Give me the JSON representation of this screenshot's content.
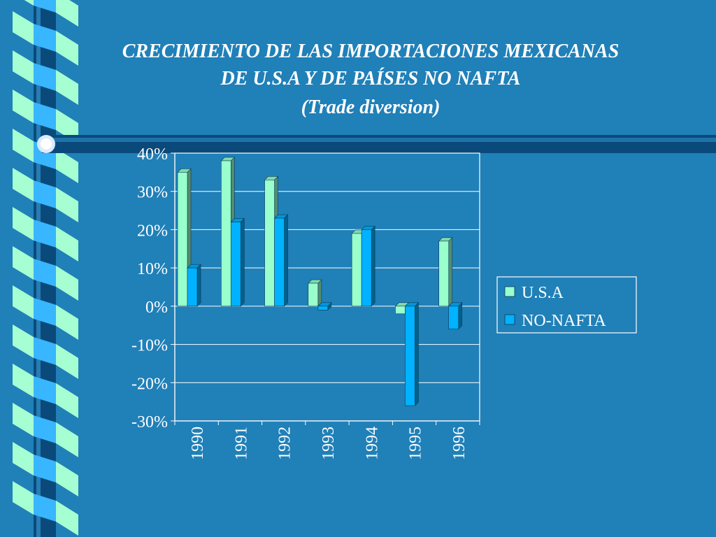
{
  "slide": {
    "title_lines": [
      "CRECIMIENTO DE LAS IMPORTACIONES MEXICANAS",
      "DE U.S.A Y DE PAÍSES NO NAFTA",
      "(Trade diversion)"
    ]
  },
  "chart_data": {
    "type": "bar",
    "title": "CRECIMIENTO DE LAS IMPORTACIONES MEXICANAS DE U.S.A Y DE PAÍSES NO NAFTA (Trade diversion)",
    "categories": [
      "1990",
      "1991",
      "1992",
      "1993",
      "1994",
      "1995",
      "1996"
    ],
    "series": [
      {
        "name": "U.S.A",
        "values": [
          35,
          38,
          33,
          6,
          19,
          -2,
          17
        ],
        "color": "#99ffcc"
      },
      {
        "name": "NO-NAFTA",
        "values": [
          10,
          22,
          23,
          -1,
          20,
          -26,
          -6
        ],
        "color": "#00b2ff"
      }
    ],
    "ylim": [
      -30,
      40
    ],
    "yticks": [
      40,
      30,
      20,
      10,
      0,
      -10,
      -20,
      -30
    ],
    "ytick_labels": [
      "40%",
      "30%",
      "20%",
      "10%",
      "0%",
      "-10%",
      "-20%",
      "-30%"
    ],
    "grid": true,
    "legend_position": "right",
    "xlabel": "",
    "ylabel": ""
  },
  "colors": {
    "background": "#2080b8",
    "plot_area": "#2080b8",
    "text": "#ffffff",
    "dark_bar": "#0a4a7a",
    "legend_bg": "#2080b8"
  }
}
